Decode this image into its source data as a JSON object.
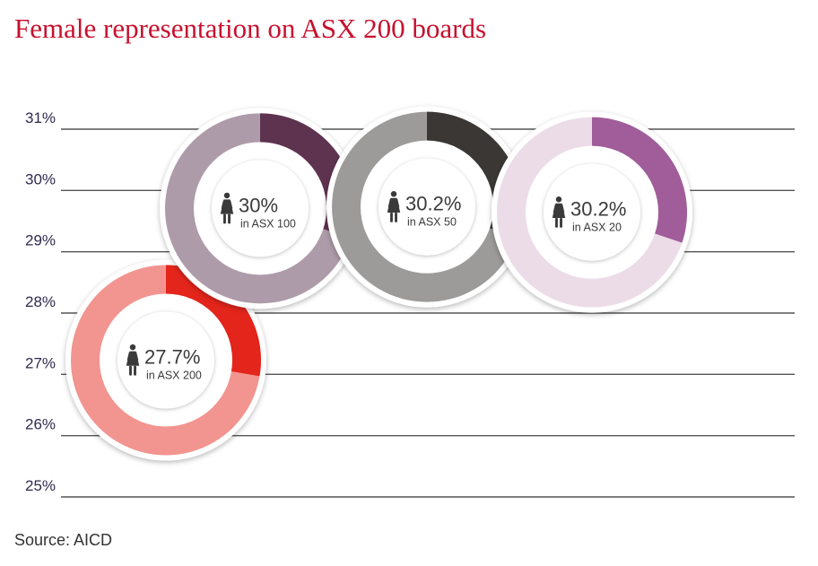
{
  "header": {
    "title": "Female representation on ASX 200 boards"
  },
  "footer": {
    "source": "Source: AICD"
  },
  "chart_data": {
    "type": "pie",
    "subtype": "donut-bubble",
    "y_ticks": [
      "31%",
      "30%",
      "29%",
      "28%",
      "27%",
      "26%",
      "25%"
    ],
    "ylim": [
      25,
      31
    ],
    "grid": true,
    "series": [
      {
        "name": "ASX 200",
        "value_label": "27.7%",
        "label": "in ASX 200",
        "value": 27.7,
        "colors": [
          "#f2948f",
          "#e3251b"
        ]
      },
      {
        "name": "ASX 100",
        "value_label": "30%",
        "label": "in ASX 100",
        "value": 30,
        "colors": [
          "#ae9ba9",
          "#5e3350"
        ]
      },
      {
        "name": "ASX 50",
        "value_label": "30.2%",
        "label": "in ASX 50",
        "value": 30.2,
        "colors": [
          "#9c9b9a",
          "#3a3734"
        ]
      },
      {
        "name": "ASX 20",
        "value_label": "30.2%",
        "label": "in ASX 20",
        "value": 30.2,
        "colors": [
          "#ecdce8",
          "#a05d9a"
        ]
      }
    ]
  }
}
